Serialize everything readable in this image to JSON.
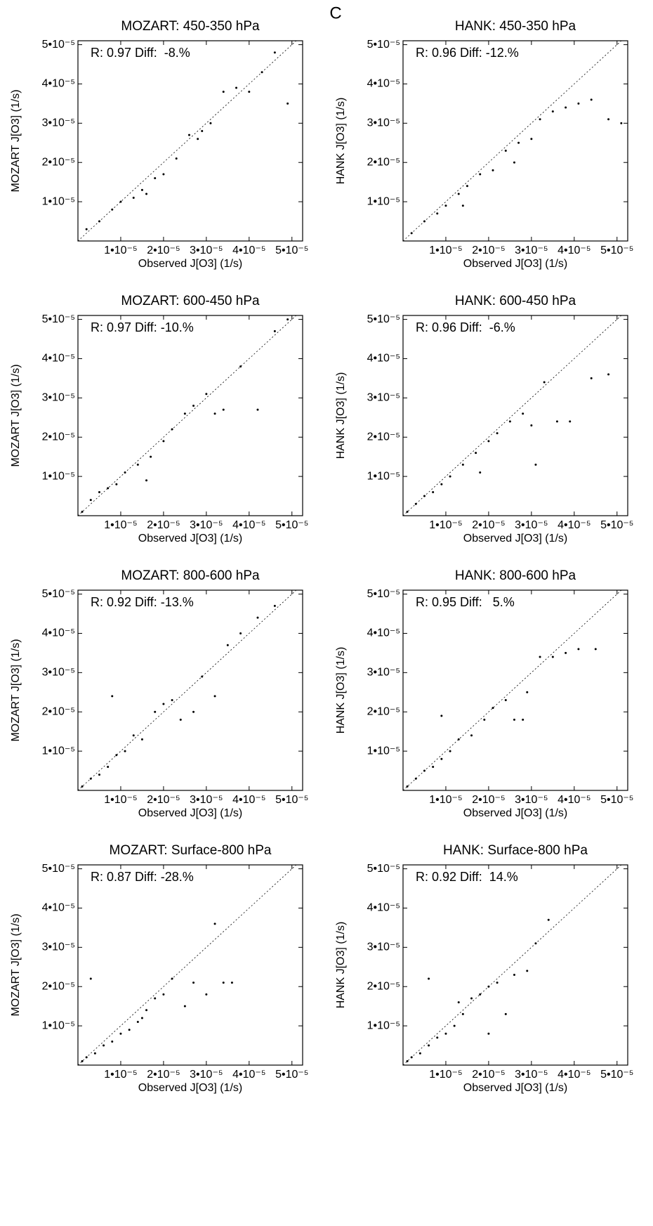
{
  "panel_label": "C",
  "chart_data": [
    {
      "type": "scatter",
      "title": "MOZART: 450-350 hPa",
      "annotation": "R: 0.97 Diff:  -8.%",
      "xlabel": "Observed J[O3] (1/s)",
      "ylabel": "MOZART J[O3] (1/s)",
      "color": "#000000",
      "x": [
        2e-06,
        5e-06,
        8e-06,
        1e-05,
        1.3e-05,
        1.5e-05,
        1.8e-05,
        2e-05,
        2.3e-05,
        2.6e-05,
        2.9e-05,
        3.1e-05,
        3.4e-05,
        3.7e-05,
        4e-05,
        4.3e-05,
        4.6e-05,
        4.9e-05,
        1.6e-05,
        2.8e-05
      ],
      "y": [
        3e-06,
        5e-06,
        8e-06,
        1e-05,
        1.1e-05,
        1.3e-05,
        1.6e-05,
        1.7e-05,
        2.1e-05,
        2.7e-05,
        2.8e-05,
        3e-05,
        3.8e-05,
        3.9e-05,
        3.8e-05,
        4.3e-05,
        4.8e-05,
        3.5e-05,
        1.2e-05,
        2.6e-05
      ],
      "xlim": [
        0,
        5.25e-05
      ],
      "ylim": [
        0,
        5.1e-05
      ],
      "xticks": [
        {
          "value": 1e-05,
          "label": "1•10⁻⁵"
        },
        {
          "value": 2e-05,
          "label": "2•10⁻⁵"
        },
        {
          "value": 3e-05,
          "label": "3•10⁻⁵"
        },
        {
          "value": 4e-05,
          "label": "4•10⁻⁵"
        },
        {
          "value": 5e-05,
          "label": "5•10⁻⁵"
        }
      ],
      "yticks": [
        {
          "value": 1e-05,
          "label": "1•10⁻⁵"
        },
        {
          "value": 2e-05,
          "label": "2•10⁻⁵"
        },
        {
          "value": 3e-05,
          "label": "3•10⁻⁵"
        },
        {
          "value": 4e-05,
          "label": "4•10⁻⁵"
        },
        {
          "value": 5e-05,
          "label": "5•10⁻⁵"
        }
      ]
    },
    {
      "type": "scatter",
      "title": "HANK: 450-350 hPa",
      "annotation": "R: 0.96 Diff: -12.%",
      "xlabel": "Observed J[O3] (1/s)",
      "ylabel": "HANK J[O3] (1/s)",
      "color": "#000000",
      "x": [
        2e-06,
        5e-06,
        8e-06,
        1e-05,
        1.3e-05,
        1.5e-05,
        1.8e-05,
        2.1e-05,
        2.4e-05,
        2.7e-05,
        3e-05,
        3.2e-05,
        3.5e-05,
        3.8e-05,
        4.1e-05,
        4.4e-05,
        4.8e-05,
        5.1e-05,
        1.4e-05,
        2.6e-05
      ],
      "y": [
        2e-06,
        5e-06,
        7e-06,
        9e-06,
        1.2e-05,
        1.4e-05,
        1.7e-05,
        1.8e-05,
        2.3e-05,
        2.5e-05,
        2.6e-05,
        3.1e-05,
        3.3e-05,
        3.4e-05,
        3.5e-05,
        3.6e-05,
        3.1e-05,
        3e-05,
        9e-06,
        2e-05
      ],
      "xlim": [
        0,
        5.25e-05
      ],
      "ylim": [
        0,
        5.1e-05
      ],
      "xticks": [
        {
          "value": 1e-05,
          "label": "1•10⁻⁵"
        },
        {
          "value": 2e-05,
          "label": "2•10⁻⁵"
        },
        {
          "value": 3e-05,
          "label": "3•10⁻⁵"
        },
        {
          "value": 4e-05,
          "label": "4•10⁻⁵"
        },
        {
          "value": 5e-05,
          "label": "5•10⁻⁵"
        }
      ],
      "yticks": [
        {
          "value": 1e-05,
          "label": "1•10⁻⁵"
        },
        {
          "value": 2e-05,
          "label": "2•10⁻⁵"
        },
        {
          "value": 3e-05,
          "label": "3•10⁻⁵"
        },
        {
          "value": 4e-05,
          "label": "4•10⁻⁵"
        },
        {
          "value": 5e-05,
          "label": "5•10⁻⁵"
        }
      ]
    },
    {
      "type": "scatter",
      "title": "MOZART: 600-450 hPa",
      "annotation": "R: 0.97 Diff: -10.%",
      "xlabel": "Observed J[O3] (1/s)",
      "ylabel": "MOZART J[O3] (1/s)",
      "color": "#000000",
      "x": [
        1e-06,
        3e-06,
        5e-06,
        7e-06,
        9e-06,
        1.1e-05,
        1.4e-05,
        1.7e-05,
        2e-05,
        2.2e-05,
        2.5e-05,
        2.7e-05,
        3e-05,
        3.2e-05,
        3.4e-05,
        3.8e-05,
        4.2e-05,
        4.6e-05,
        4.9e-05,
        1.6e-05
      ],
      "y": [
        1e-06,
        4e-06,
        6e-06,
        7e-06,
        8e-06,
        1.1e-05,
        1.3e-05,
        1.5e-05,
        1.9e-05,
        2.2e-05,
        2.6e-05,
        2.8e-05,
        3.1e-05,
        2.6e-05,
        2.7e-05,
        3.8e-05,
        2.7e-05,
        4.7e-05,
        5e-05,
        9e-06
      ],
      "xlim": [
        0,
        5.25e-05
      ],
      "ylim": [
        0,
        5.1e-05
      ],
      "xticks": [
        {
          "value": 1e-05,
          "label": "1•10⁻⁵"
        },
        {
          "value": 2e-05,
          "label": "2•10⁻⁵"
        },
        {
          "value": 3e-05,
          "label": "3•10⁻⁵"
        },
        {
          "value": 4e-05,
          "label": "4•10⁻⁵"
        },
        {
          "value": 5e-05,
          "label": "5•10⁻⁵"
        }
      ],
      "yticks": [
        {
          "value": 1e-05,
          "label": "1•10⁻⁵"
        },
        {
          "value": 2e-05,
          "label": "2•10⁻⁵"
        },
        {
          "value": 3e-05,
          "label": "3•10⁻⁵"
        },
        {
          "value": 4e-05,
          "label": "4•10⁻⁵"
        },
        {
          "value": 5e-05,
          "label": "5•10⁻⁵"
        }
      ]
    },
    {
      "type": "scatter",
      "title": "HANK: 600-450 hPa",
      "annotation": "R: 0.96 Diff:  -6.%",
      "xlabel": "Observed J[O3] (1/s)",
      "ylabel": "HANK J[O3] (1/s)",
      "color": "#000000",
      "x": [
        1e-06,
        3e-06,
        5e-06,
        7e-06,
        9e-06,
        1.1e-05,
        1.4e-05,
        1.7e-05,
        2e-05,
        2.2e-05,
        2.5e-05,
        2.8e-05,
        3e-05,
        3.3e-05,
        3.6e-05,
        3.9e-05,
        4.4e-05,
        4.8e-05,
        1.8e-05,
        3.1e-05
      ],
      "y": [
        1e-06,
        3e-06,
        5e-06,
        6e-06,
        8e-06,
        1e-05,
        1.3e-05,
        1.6e-05,
        1.9e-05,
        2.1e-05,
        2.4e-05,
        2.6e-05,
        2.3e-05,
        3.4e-05,
        2.4e-05,
        2.4e-05,
        3.5e-05,
        3.6e-05,
        1.1e-05,
        1.3e-05
      ],
      "xlim": [
        0,
        5.25e-05
      ],
      "ylim": [
        0,
        5.1e-05
      ],
      "xticks": [
        {
          "value": 1e-05,
          "label": "1•10⁻⁵"
        },
        {
          "value": 2e-05,
          "label": "2•10⁻⁵"
        },
        {
          "value": 3e-05,
          "label": "3•10⁻⁵"
        },
        {
          "value": 4e-05,
          "label": "4•10⁻⁵"
        },
        {
          "value": 5e-05,
          "label": "5•10⁻⁵"
        }
      ],
      "yticks": [
        {
          "value": 1e-05,
          "label": "1•10⁻⁵"
        },
        {
          "value": 2e-05,
          "label": "2•10⁻⁵"
        },
        {
          "value": 3e-05,
          "label": "3•10⁻⁵"
        },
        {
          "value": 4e-05,
          "label": "4•10⁻⁵"
        },
        {
          "value": 5e-05,
          "label": "5•10⁻⁵"
        }
      ]
    },
    {
      "type": "scatter",
      "title": "MOZART: 800-600 hPa",
      "annotation": "R: 0.92 Diff: -13.%",
      "xlabel": "Observed J[O3] (1/s)",
      "ylabel": "MOZART J[O3] (1/s)",
      "color": "#000000",
      "x": [
        1e-06,
        3e-06,
        5e-06,
        7e-06,
        9e-06,
        1.1e-05,
        1.3e-05,
        1.5e-05,
        1.8e-05,
        2e-05,
        2.2e-05,
        2.4e-05,
        2.7e-05,
        2.9e-05,
        3.2e-05,
        3.5e-05,
        3.8e-05,
        4.2e-05,
        4.6e-05,
        8e-06
      ],
      "y": [
        1e-06,
        3e-06,
        4e-06,
        6e-06,
        9e-06,
        1e-05,
        1.4e-05,
        1.3e-05,
        2e-05,
        2.2e-05,
        2.3e-05,
        1.8e-05,
        2e-05,
        2.9e-05,
        2.4e-05,
        3.7e-05,
        4e-05,
        4.4e-05,
        4.7e-05,
        2.4e-05
      ],
      "xlim": [
        0,
        5.25e-05
      ],
      "ylim": [
        0,
        5.1e-05
      ],
      "xticks": [
        {
          "value": 1e-05,
          "label": "1•10⁻⁵"
        },
        {
          "value": 2e-05,
          "label": "2•10⁻⁵"
        },
        {
          "value": 3e-05,
          "label": "3•10⁻⁵"
        },
        {
          "value": 4e-05,
          "label": "4•10⁻⁵"
        },
        {
          "value": 5e-05,
          "label": "5•10⁻⁵"
        }
      ],
      "yticks": [
        {
          "value": 1e-05,
          "label": "1•10⁻⁵"
        },
        {
          "value": 2e-05,
          "label": "2•10⁻⁵"
        },
        {
          "value": 3e-05,
          "label": "3•10⁻⁵"
        },
        {
          "value": 4e-05,
          "label": "4•10⁻⁵"
        },
        {
          "value": 5e-05,
          "label": "5•10⁻⁵"
        }
      ]
    },
    {
      "type": "scatter",
      "title": "HANK: 800-600 hPa",
      "annotation": "R: 0.95 Diff:   5.%",
      "xlabel": "Observed J[O3] (1/s)",
      "ylabel": "HANK J[O3] (1/s)",
      "color": "#000000",
      "x": [
        1e-06,
        3e-06,
        5e-06,
        7e-06,
        9e-06,
        1.1e-05,
        1.3e-05,
        1.6e-05,
        1.9e-05,
        2.1e-05,
        2.4e-05,
        2.6e-05,
        2.9e-05,
        3.2e-05,
        3.5e-05,
        3.8e-05,
        4.1e-05,
        4.5e-05,
        9e-06,
        2.8e-05
      ],
      "y": [
        1e-06,
        3e-06,
        5e-06,
        6e-06,
        8e-06,
        1e-05,
        1.3e-05,
        1.4e-05,
        1.8e-05,
        2.1e-05,
        2.3e-05,
        1.8e-05,
        2.5e-05,
        3.4e-05,
        3.4e-05,
        3.5e-05,
        3.6e-05,
        3.6e-05,
        1.9e-05,
        1.8e-05
      ],
      "xlim": [
        0,
        5.25e-05
      ],
      "ylim": [
        0,
        5.1e-05
      ],
      "xticks": [
        {
          "value": 1e-05,
          "label": "1•10⁻⁵"
        },
        {
          "value": 2e-05,
          "label": "2•10⁻⁵"
        },
        {
          "value": 3e-05,
          "label": "3•10⁻⁵"
        },
        {
          "value": 4e-05,
          "label": "4•10⁻⁵"
        },
        {
          "value": 5e-05,
          "label": "5•10⁻⁵"
        }
      ],
      "yticks": [
        {
          "value": 1e-05,
          "label": "1•10⁻⁵"
        },
        {
          "value": 2e-05,
          "label": "2•10⁻⁵"
        },
        {
          "value": 3e-05,
          "label": "3•10⁻⁵"
        },
        {
          "value": 4e-05,
          "label": "4•10⁻⁵"
        },
        {
          "value": 5e-05,
          "label": "5•10⁻⁵"
        }
      ]
    },
    {
      "type": "scatter",
      "title": "MOZART: Surface-800 hPa",
      "annotation": "R: 0.87 Diff: -28.%",
      "xlabel": "Observed J[O3] (1/s)",
      "ylabel": "MOZART J[O3] (1/s)",
      "color": "#000000",
      "x": [
        1e-06,
        2e-06,
        4e-06,
        6e-06,
        8e-06,
        1e-05,
        1.2e-05,
        1.4e-05,
        1.6e-05,
        1.8e-05,
        2e-05,
        2.2e-05,
        2.5e-05,
        2.7e-05,
        3e-05,
        3.2e-05,
        3.4e-05,
        3.6e-05,
        3e-06,
        1.5e-05
      ],
      "y": [
        1e-06,
        2e-06,
        3e-06,
        5e-06,
        6e-06,
        8e-06,
        9e-06,
        1.1e-05,
        1.4e-05,
        1.7e-05,
        1.8e-05,
        2.2e-05,
        1.5e-05,
        2.1e-05,
        1.8e-05,
        3.6e-05,
        2.1e-05,
        2.1e-05,
        2.2e-05,
        1.2e-05
      ],
      "xlim": [
        0,
        5.25e-05
      ],
      "ylim": [
        0,
        5.1e-05
      ],
      "xticks": [
        {
          "value": 1e-05,
          "label": "1•10⁻⁵"
        },
        {
          "value": 2e-05,
          "label": "2•10⁻⁵"
        },
        {
          "value": 3e-05,
          "label": "3•10⁻⁵"
        },
        {
          "value": 4e-05,
          "label": "4•10⁻⁵"
        },
        {
          "value": 5e-05,
          "label": "5•10⁻⁵"
        }
      ],
      "yticks": [
        {
          "value": 1e-05,
          "label": "1•10⁻⁵"
        },
        {
          "value": 2e-05,
          "label": "2•10⁻⁵"
        },
        {
          "value": 3e-05,
          "label": "3•10⁻⁵"
        },
        {
          "value": 4e-05,
          "label": "4•10⁻⁵"
        },
        {
          "value": 5e-05,
          "label": "5•10⁻⁵"
        }
      ]
    },
    {
      "type": "scatter",
      "title": "HANK: Surface-800 hPa",
      "annotation": "R: 0.92 Diff:  14.%",
      "xlabel": "Observed J[O3] (1/s)",
      "ylabel": "HANK J[O3] (1/s)",
      "color": "#000000",
      "x": [
        1e-06,
        2e-06,
        4e-06,
        6e-06,
        8e-06,
        1e-05,
        1.2e-05,
        1.4e-05,
        1.6e-05,
        1.8e-05,
        2e-05,
        2.2e-05,
        2.4e-05,
        2.6e-05,
        2.9e-05,
        3.1e-05,
        3.4e-05,
        6e-06,
        1.3e-05,
        2e-05
      ],
      "y": [
        1e-06,
        2e-06,
        3e-06,
        5e-06,
        7e-06,
        8e-06,
        1e-05,
        1.3e-05,
        1.7e-05,
        1.8e-05,
        2e-05,
        2.1e-05,
        1.3e-05,
        2.3e-05,
        2.4e-05,
        3.1e-05,
        3.7e-05,
        2.2e-05,
        1.6e-05,
        8e-06
      ],
      "xlim": [
        0,
        5.25e-05
      ],
      "ylim": [
        0,
        5.1e-05
      ],
      "xticks": [
        {
          "value": 1e-05,
          "label": "1•10⁻⁵"
        },
        {
          "value": 2e-05,
          "label": "2•10⁻⁵"
        },
        {
          "value": 3e-05,
          "label": "3•10⁻⁵"
        },
        {
          "value": 4e-05,
          "label": "4•10⁻⁵"
        },
        {
          "value": 5e-05,
          "label": "5•10⁻⁵"
        }
      ],
      "yticks": [
        {
          "value": 1e-05,
          "label": "1•10⁻⁵"
        },
        {
          "value": 2e-05,
          "label": "2•10⁻⁵"
        },
        {
          "value": 3e-05,
          "label": "3•10⁻⁵"
        },
        {
          "value": 4e-05,
          "label": "4•10⁻⁵"
        },
        {
          "value": 5e-05,
          "label": "5•10⁻⁵"
        }
      ]
    }
  ]
}
